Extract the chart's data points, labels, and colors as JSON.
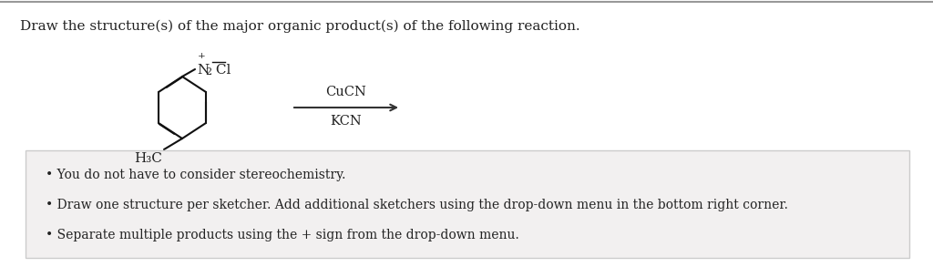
{
  "background_color": "#ffffff",
  "top_border_color": "#999999",
  "title_text": "Draw the structure(s) of the major organic product(s) of the following reaction.",
  "title_fontsize": 11.0,
  "title_color": "#222222",
  "reagent_above": "CuCN",
  "reagent_below": "KCN",
  "reagent_fontsize": 10.5,
  "arrow_color": "#333333",
  "box_facecolor": "#f2f0f0",
  "box_edgecolor": "#cccccc",
  "bullet_texts": [
    "You do not have to consider stereochemistry.",
    "Draw one structure per sketcher. Add additional sketchers using the drop-down menu in the bottom right corner.",
    "Separate multiple products using the + sign from the drop-down menu."
  ],
  "bullet_fontsize": 10.0,
  "bullet_color": "#222222",
  "line_color": "#111111",
  "text_color": "#222222"
}
